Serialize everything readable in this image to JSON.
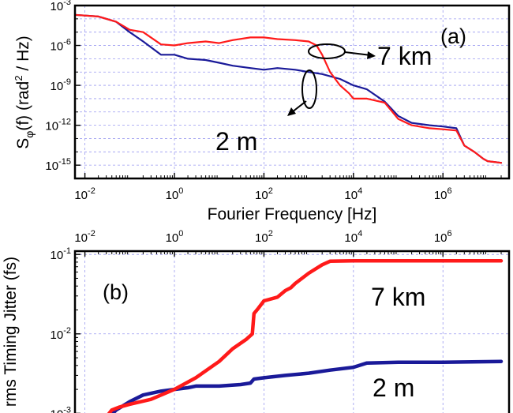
{
  "chart_data": [
    {
      "panel_label": "(a)",
      "type": "line",
      "xlabel": "Fourier Frequency [Hz]",
      "ylabel": "Sφ(f) (rad² / Hz)",
      "ylabel_main": "S",
      "ylabel_sub": "φ",
      "ylabel_rest": "(f) (rad",
      "ylabel_sup": "2",
      "ylabel_end": " / Hz)",
      "xscale": "log",
      "yscale": "log",
      "xlim": [
        0.006,
        30000000
      ],
      "ylim": [
        1e-16,
        0.001
      ],
      "grid": true,
      "x_ticks": [
        {
          "base": "10",
          "exp": "-2"
        },
        {
          "base": "10",
          "exp": "0"
        },
        {
          "base": "10",
          "exp": "2"
        },
        {
          "base": "10",
          "exp": "4"
        },
        {
          "base": "10",
          "exp": "6"
        }
      ],
      "y_ticks": [
        {
          "base": "10",
          "exp": "-3"
        },
        {
          "base": "10",
          "exp": "-6"
        },
        {
          "base": "10",
          "exp": "-9"
        },
        {
          "base": "10",
          "exp": "-12"
        },
        {
          "base": "10",
          "exp": "-15"
        }
      ],
      "annotations": [
        "7 km",
        "2 m"
      ],
      "series": [
        {
          "name": "7 km",
          "color": "#ff1a1a",
          "x": [
            0.006,
            0.02,
            0.05,
            0.1,
            0.2,
            0.5,
            1,
            2,
            5,
            10,
            20,
            50,
            100,
            200,
            500,
            1000,
            1500,
            2000,
            3000,
            5000,
            8000,
            10000,
            20000,
            50000,
            100000,
            200000,
            500000,
            1000000,
            2000000,
            3000000,
            5000000,
            8000000,
            10000000,
            20000000
          ],
          "y": [
            0.0002,
            0.00015,
            6e-05,
            1.5e-05,
            1e-05,
            1.2e-06,
            1e-06,
            1.5e-06,
            2e-06,
            1.5e-06,
            2.5e-06,
            4e-06,
            4e-06,
            3e-06,
            2.5e-06,
            2e-06,
            1e-06,
            2e-07,
            1e-08,
            1e-09,
            2.5e-10,
            1e-10,
            1e-10,
            5e-11,
            3e-12,
            1e-12,
            6e-13,
            5e-13,
            4e-13,
            3e-14,
            1e-14,
            3e-15,
            2e-15,
            1.5e-15
          ]
        },
        {
          "name": "2 m",
          "color": "#1a1a99",
          "x": [
            0.006,
            0.02,
            0.05,
            0.1,
            0.2,
            0.5,
            1,
            2,
            5,
            10,
            20,
            50,
            100,
            200,
            500,
            1000,
            2000,
            5000,
            10000,
            20000,
            50000,
            100000,
            200000,
            500000,
            1000000,
            2000000,
            3000000,
            5000000,
            8000000,
            10000000,
            20000000
          ],
          "y": [
            0.0002,
            0.00015,
            6e-05,
            1e-05,
            2e-06,
            2e-07,
            2e-07,
            1e-07,
            8e-08,
            5e-08,
            3e-08,
            2e-08,
            1.5e-08,
            2e-08,
            1.5e-08,
            1e-08,
            7e-09,
            3e-09,
            1e-09,
            5e-10,
            6e-11,
            5e-12,
            1.5e-12,
            1e-12,
            8e-13,
            6e-13,
            3e-14,
            1e-14,
            3e-15,
            2e-15,
            1.5e-15
          ]
        }
      ]
    },
    {
      "panel_label": "(b)",
      "type": "line",
      "ylabel": "rms Timing Jitter (fs)",
      "xscale": "log",
      "yscale": "log",
      "xlim": [
        0.006,
        30000000
      ],
      "ylim": [
        0.0009,
        0.11
      ],
      "grid": true,
      "x_ticks": [
        {
          "base": "10",
          "exp": "-2"
        },
        {
          "base": "10",
          "exp": "0"
        },
        {
          "base": "10",
          "exp": "2"
        },
        {
          "base": "10",
          "exp": "4"
        },
        {
          "base": "10",
          "exp": "6"
        }
      ],
      "y_ticks": [
        {
          "base": "10",
          "exp": "-1"
        },
        {
          "base": "10",
          "exp": "-2"
        },
        {
          "base": "10",
          "exp": "-3"
        }
      ],
      "annotations": [
        "7 km",
        "2 m"
      ],
      "series": [
        {
          "name": "7 km",
          "color": "#ff1a1a",
          "x": [
            0.03,
            0.04,
            0.06,
            0.1,
            0.3,
            1,
            3,
            10,
            20,
            40,
            55,
            60,
            75,
            100,
            200,
            300,
            400,
            500,
            1000,
            2000,
            3000,
            10000,
            100000,
            1000000,
            20000000
          ],
          "y": [
            0.0009,
            0.0011,
            0.0012,
            0.0013,
            0.0015,
            0.002,
            0.0028,
            0.0045,
            0.0065,
            0.0085,
            0.01,
            0.018,
            0.021,
            0.026,
            0.029,
            0.035,
            0.038,
            0.043,
            0.058,
            0.074,
            0.082,
            0.083,
            0.083,
            0.083,
            0.083
          ]
        },
        {
          "name": "2 m",
          "color": "#1a1a99",
          "x": [
            0.035,
            0.05,
            0.1,
            0.2,
            0.5,
            1,
            2,
            3,
            5,
            10,
            30,
            50,
            60,
            100,
            300,
            1000,
            3000,
            10000,
            20000,
            100000,
            1000000,
            20000000
          ],
          "y": [
            0.0009,
            0.0011,
            0.0014,
            0.0017,
            0.0019,
            0.002,
            0.0021,
            0.0022,
            0.0022,
            0.0022,
            0.0023,
            0.0024,
            0.0027,
            0.0028,
            0.003,
            0.0032,
            0.0035,
            0.0038,
            0.0043,
            0.0044,
            0.0044,
            0.0045
          ]
        }
      ]
    }
  ]
}
